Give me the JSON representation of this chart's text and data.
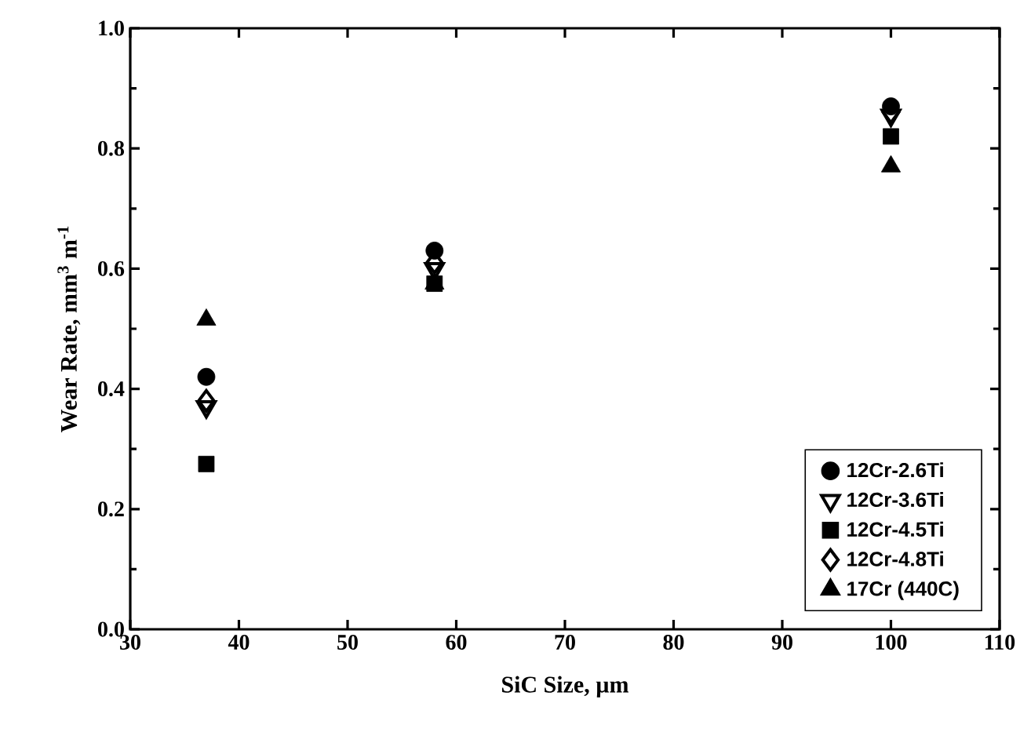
{
  "chart_data": {
    "type": "scatter",
    "xlabel": "SiC Size, µm",
    "ylabel": "Wear Rate, mm$^{3}$ m$^{-1}$",
    "x": [
      37,
      58,
      100
    ],
    "series": [
      {
        "name": "12Cr-2.6Ti",
        "color": "#000000",
        "marker": "circle",
        "values": [
          0.42,
          0.63,
          0.87
        ]
      },
      {
        "name": "12Cr-3.6Ti",
        "color": "#000000",
        "marker": "triangle-down-open",
        "values": [
          0.37,
          0.6,
          0.855
        ]
      },
      {
        "name": "12Cr-4.5Ti",
        "color": "#000000",
        "marker": "square",
        "values": [
          0.275,
          0.575,
          0.82
        ]
      },
      {
        "name": "12Cr-4.8Ti",
        "color": "#000000",
        "marker": "diamond-open",
        "values": [
          0.38,
          0.61,
          0.86
        ]
      },
      {
        "name": "17Cr (440C)",
        "color": "#000000",
        "marker": "triangle",
        "values": [
          0.515,
          0.575,
          0.77
        ]
      }
    ],
    "xlim": [
      30,
      110
    ],
    "xticks": [
      30,
      40,
      50,
      60,
      70,
      80,
      90,
      100,
      110
    ],
    "ylim": [
      0,
      1.0
    ],
    "yticks": [
      {
        "value": 0,
        "label": "0.0"
      },
      {
        "value": 0.2,
        "label": "0.2"
      },
      {
        "value": 0.4,
        "label": "0.4"
      },
      {
        "value": 0.6,
        "label": "0.6"
      },
      {
        "value": 0.8,
        "label": "0.8"
      },
      {
        "value": 1.0,
        "label": "1.0"
      }
    ],
    "grid": false,
    "legend": "bottom right"
  }
}
